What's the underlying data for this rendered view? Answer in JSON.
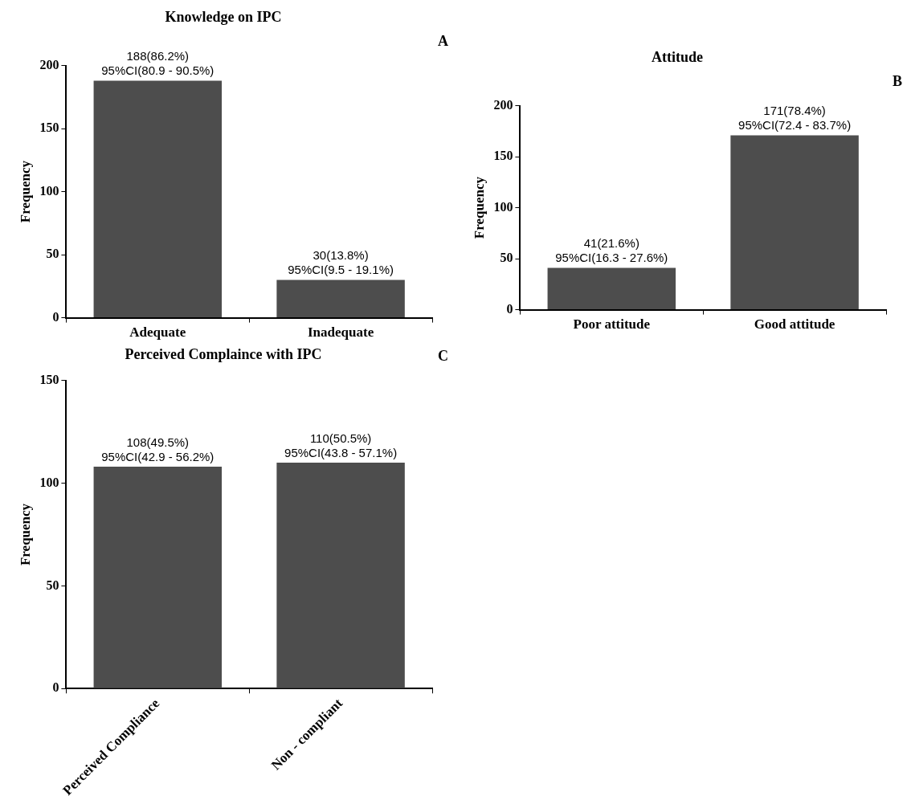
{
  "chart_data": [
    {
      "type": "bar",
      "title": "Knowledge on IPC",
      "ylabel": "Frequency",
      "categories": [
        "Adequate",
        "Inadequate"
      ],
      "values": [
        188,
        30
      ],
      "color": "#4d4d4d",
      "value_labels": [
        "188(86.2%)\n95%CI(80.9 - 90.5%)",
        "30(13.8%)\n95%CI(9.5 - 19.1%)"
      ],
      "ylim": [
        0,
        200
      ],
      "yticks": [
        0,
        50,
        100,
        150,
        200
      ],
      "grid": false,
      "legend": false,
      "annotations": [
        "A"
      ]
    },
    {
      "type": "bar",
      "title": "Attitude",
      "ylabel": "Frequency",
      "categories": [
        "Poor attitude",
        "Good attitude"
      ],
      "values": [
        41,
        171
      ],
      "color": "#4d4d4d",
      "value_labels": [
        "41(21.6%)\n95%CI(16.3 - 27.6%)",
        "171(78.4%)\n95%CI(72.4 - 83.7%)"
      ],
      "ylim": [
        0,
        200
      ],
      "yticks": [
        0,
        50,
        100,
        150,
        200
      ],
      "grid": false,
      "legend": false,
      "annotations": [
        "B"
      ]
    },
    {
      "type": "bar",
      "title": "Perceived Complaince with IPC",
      "ylabel": "Frequency",
      "categories": [
        "Perceived Compliance",
        "Non - compliant"
      ],
      "values": [
        108,
        110
      ],
      "color": "#4d4d4d",
      "value_labels": [
        "108(49.5%)\n95%CI(42.9 - 56.2%)",
        "110(50.5%)\n95%CI(43.8 - 57.1%)"
      ],
      "ylim": [
        0,
        150
      ],
      "yticks": [
        0,
        50,
        100,
        150
      ],
      "grid": false,
      "legend": false,
      "annotations": [
        "C"
      ]
    }
  ]
}
